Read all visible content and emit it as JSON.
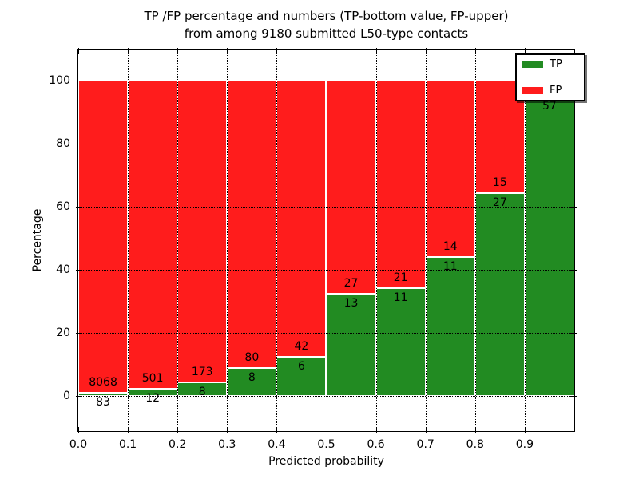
{
  "title": {
    "line1": "TP /FP percentage and numbers (TP-bottom value, FP-upper)",
    "line2": "from among 9180 submitted L50-type contacts"
  },
  "axes": {
    "xlabel": "Predicted probability",
    "ylabel": "Percentage",
    "x_ticks": [
      "0.0",
      "0.1",
      "0.2",
      "0.3",
      "0.4",
      "0.5",
      "0.6",
      "0.7",
      "0.8",
      "0.9"
    ],
    "y_ticks": [
      0,
      20,
      40,
      60,
      80,
      100
    ]
  },
  "legend": {
    "items": [
      {
        "label": "TP",
        "color": "#228b22"
      },
      {
        "label": "FP",
        "color": "#ff1c1c"
      }
    ]
  },
  "colors": {
    "tp": "#228b22",
    "fp": "#ff1c1c",
    "grid": "#000000"
  },
  "chart_data": {
    "type": "bar",
    "stacked": true,
    "title": "TP /FP percentage and numbers (TP-bottom value, FP-upper) from among 9180 submitted L50-type contacts",
    "xlabel": "Predicted probability",
    "ylabel": "Percentage",
    "bin_starts": [
      0.0,
      0.1,
      0.2,
      0.3,
      0.4,
      0.5,
      0.6,
      0.7,
      0.8,
      0.9
    ],
    "bin_width": 0.1,
    "xlim": [
      0,
      1.0
    ],
    "ylim": [
      -11,
      109.6
    ],
    "grid": "dotted",
    "legend_position": "upper right",
    "series": [
      {
        "name": "TP",
        "counts": [
          83,
          12,
          8,
          8,
          6,
          13,
          11,
          11,
          27,
          57
        ],
        "pct": [
          1.02,
          2.34,
          4.42,
          9.09,
          12.5,
          32.5,
          34.38,
          44.0,
          64.29,
          95.0
        ]
      },
      {
        "name": "FP",
        "counts": [
          8068,
          501,
          173,
          80,
          42,
          27,
          21,
          14,
          15,
          null
        ],
        "pct": [
          98.98,
          97.66,
          95.58,
          90.91,
          87.5,
          67.5,
          65.62,
          56.0,
          35.71,
          5.0
        ]
      }
    ]
  }
}
